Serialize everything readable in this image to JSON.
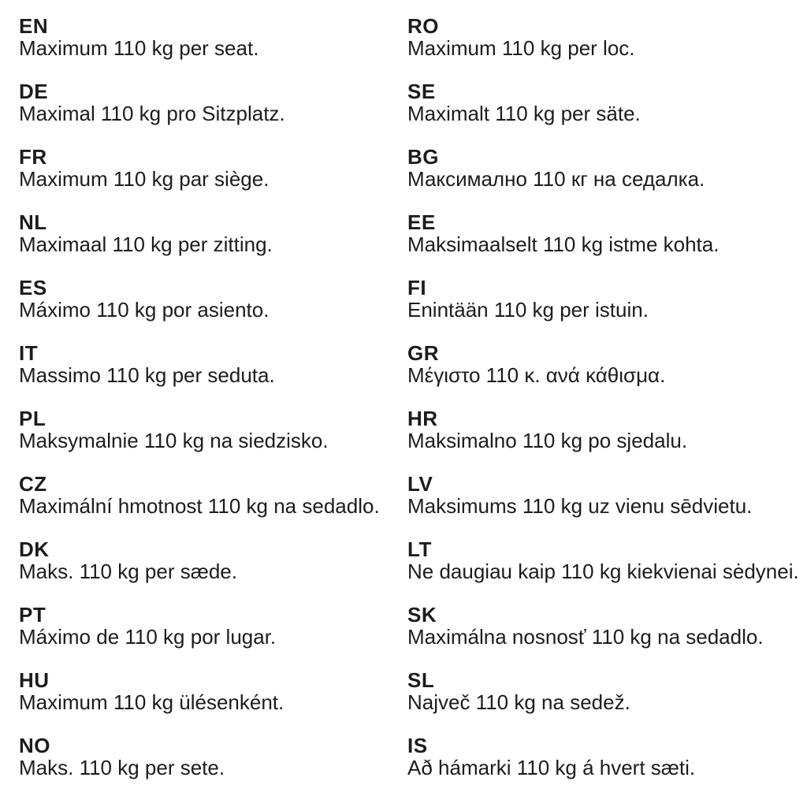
{
  "page": {
    "kind": "multilingual-instruction-sheet",
    "background_color": "#ffffff",
    "text_color": "#1c1c1c"
  },
  "entries": {
    "left": [
      {
        "code": "EN",
        "text": "Maximum 110 kg per seat."
      },
      {
        "code": "DE",
        "text": "Maximal 110 kg pro Sitzplatz."
      },
      {
        "code": "FR",
        "text": "Maximum 110 kg par siège."
      },
      {
        "code": "NL",
        "text": "Maximaal 110 kg per zitting."
      },
      {
        "code": "ES",
        "text": "Máximo 110 kg por asiento."
      },
      {
        "code": "IT",
        "text": "Massimo 110 kg per seduta."
      },
      {
        "code": "PL",
        "text": "Maksymalnie 110 kg na siedzisko."
      },
      {
        "code": "CZ",
        "text": "Maximální hmotnost 110 kg na sedadlo."
      },
      {
        "code": "DK",
        "text": "Maks. 110 kg per sæde."
      },
      {
        "code": "PT",
        "text": "Máximo de 110 kg por lugar."
      },
      {
        "code": "HU",
        "text": "Maximum 110 kg ülésenként."
      },
      {
        "code": "NO",
        "text": "Maks. 110 kg per sete."
      }
    ],
    "right": [
      {
        "code": "RO",
        "text": "Maximum 110 kg per loc."
      },
      {
        "code": "SE",
        "text": "Maximalt 110 kg per säte."
      },
      {
        "code": "BG",
        "text": "Максимално 110 кг на седалка."
      },
      {
        "code": "EE",
        "text": "Maksimaalselt 110 kg istme kohta."
      },
      {
        "code": "FI",
        "text": "Enintään 110 kg per istuin."
      },
      {
        "code": "GR",
        "text": "Μέγιστο 110 κ. ανά κάθισμα."
      },
      {
        "code": "HR",
        "text": "Maksimalno 110 kg po sjedalu."
      },
      {
        "code": "LV",
        "text": "Maksimums 110 kg uz vienu sēdvietu."
      },
      {
        "code": "LT",
        "text": "Ne daugiau kaip 110 kg kiekvienai sėdynei."
      },
      {
        "code": "SK",
        "text": "Maximálna nosnosť 110 kg na sedadlo."
      },
      {
        "code": "SL",
        "text": "Največ 110 kg na sedež."
      },
      {
        "code": "IS",
        "text": "Að hámarki 110 kg á hvert sæti."
      }
    ]
  }
}
